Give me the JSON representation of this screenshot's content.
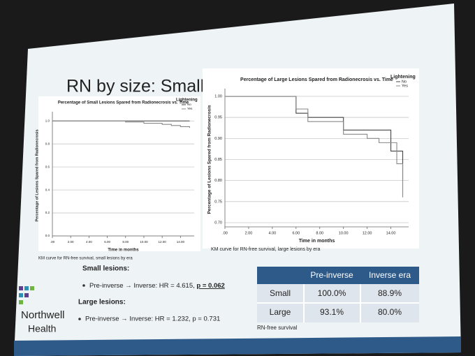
{
  "title": "RN by size: Small lesions drive signal",
  "chart_data": [
    {
      "type": "line",
      "step": true,
      "title": "Percentage of Small Lesions Spared from Radionecrosis vs. Time",
      "x_label": "Time in months",
      "y_label": "Percentage of Lesions Spared from Radionecrosis",
      "legend_title": "Lightening",
      "legend": "top-right",
      "grid": true,
      "xlim": [
        0,
        15.5
      ],
      "ylim": [
        0,
        1.05
      ],
      "xticks": [
        {
          "value": 0,
          "label": ".00"
        },
        {
          "value": 2,
          "label": "2.00"
        },
        {
          "value": 4,
          "label": "4.00"
        },
        {
          "value": 6,
          "label": "6.00"
        },
        {
          "value": 8,
          "label": "8.00"
        },
        {
          "value": 10,
          "label": "10.00"
        },
        {
          "value": 12,
          "label": "12.00"
        },
        {
          "value": 14,
          "label": "14.00"
        }
      ],
      "yticks": [
        {
          "value": 0,
          "label": "0.0"
        },
        {
          "value": 0.2,
          "label": "0.2"
        },
        {
          "value": 0.4,
          "label": "0.4"
        },
        {
          "value": 0.6,
          "label": "0.6"
        },
        {
          "value": 0.8,
          "label": "0.8"
        },
        {
          "value": 1,
          "label": "1.0"
        }
      ],
      "series": [
        {
          "name": "No",
          "color": "#444444",
          "x": [
            0,
            15
          ],
          "values": [
            1,
            1
          ]
        },
        {
          "name": "Yes",
          "color": "#888888",
          "x": [
            0,
            8,
            10,
            12,
            13,
            14,
            15
          ],
          "values": [
            1,
            0.99,
            0.98,
            0.97,
            0.96,
            0.95,
            0.94
          ]
        }
      ],
      "caption": "KM curve for RN-free survival, small lesions by era"
    },
    {
      "type": "line",
      "step": true,
      "title": "Percentage of Large Lesions Spared from Radionecrosis vs. Time",
      "x_label": "Time in months",
      "y_label": "Percentage of Lesions Spared from Radionecrosis",
      "legend_title": "Lightening",
      "legend": "top-right",
      "grid": true,
      "xlim": [
        0,
        15.5
      ],
      "ylim": [
        0.69,
        1.01
      ],
      "xticks": [
        {
          "value": 0,
          "label": ".00"
        },
        {
          "value": 2,
          "label": "2.00"
        },
        {
          "value": 4,
          "label": "4.00"
        },
        {
          "value": 6,
          "label": "6.00"
        },
        {
          "value": 8,
          "label": "8.00"
        },
        {
          "value": 10,
          "label": "10.00"
        },
        {
          "value": 12,
          "label": "12.00"
        },
        {
          "value": 14,
          "label": "14.00"
        }
      ],
      "yticks": [
        {
          "value": 0.7,
          "label": "0.70"
        },
        {
          "value": 0.75,
          "label": "0.75"
        },
        {
          "value": 0.8,
          "label": "0.80"
        },
        {
          "value": 0.85,
          "label": "0.85"
        },
        {
          "value": 0.9,
          "label": "0.90"
        },
        {
          "value": 0.95,
          "label": "0.95"
        },
        {
          "value": 1,
          "label": "1.00"
        }
      ],
      "series": [
        {
          "name": "No",
          "color": "#444444",
          "x": [
            0,
            6,
            7,
            10,
            12,
            14,
            15
          ],
          "values": [
            1,
            0.96,
            0.95,
            0.92,
            0.92,
            0.87,
            0.8
          ]
        },
        {
          "name": "Yes",
          "color": "#888888",
          "x": [
            0,
            6,
            7,
            10,
            12,
            13,
            14.5,
            15
          ],
          "values": [
            1,
            0.97,
            0.94,
            0.91,
            0.9,
            0.89,
            0.84,
            0.76
          ]
        }
      ],
      "caption": "KM curve for RN-free survival, large lesions by era"
    }
  ],
  "small_heading": "Small lesions:",
  "small_hr": "Pre-inverse → Inverse: HR = 4.615, ",
  "small_p": "p = 0.062",
  "large_heading": "Large lesions:",
  "large_hr": "Pre-inverse → Inverse: HR = 1.232, p = 0.731",
  "table": {
    "header": [
      "Pre-inverse",
      "Inverse era"
    ],
    "rows": [
      [
        "Small",
        "100.0%",
        "88.9%"
      ],
      [
        "Large",
        "93.1%",
        "80.0%"
      ]
    ],
    "caption": "RN-free survival"
  },
  "logo": {
    "line1": "Northwell",
    "line2": "Health"
  }
}
